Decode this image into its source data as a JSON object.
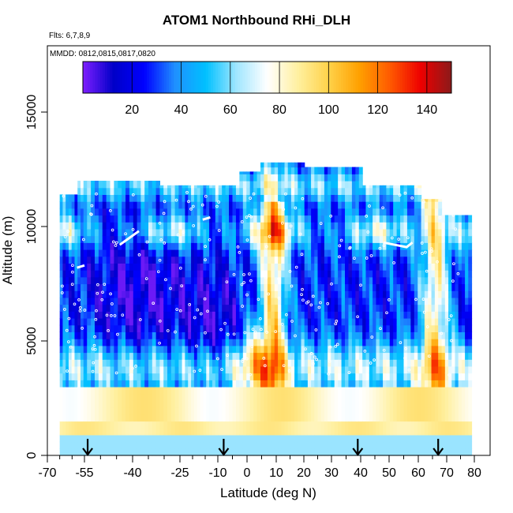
{
  "chart_data": {
    "type": "heatmap",
    "title": "ATOM1 Northbound RHi_DLH",
    "subtitle": "Flts: 6,7,8,9",
    "annotation": "MMDD: 0812,0815,0817,0820",
    "xlabel": "Latitude (deg N)",
    "ylabel": "Altitude (m)",
    "xlim": [
      -70,
      80
    ],
    "ylim": [
      0,
      17500
    ],
    "x_ticks": [
      -70,
      -55,
      -40,
      -25,
      -10,
      0,
      10,
      20,
      30,
      40,
      50,
      60,
      70,
      80
    ],
    "y_ticks": [
      0,
      5000,
      10000,
      15000
    ],
    "colorbar": {
      "range": [
        0,
        150
      ],
      "ticks": [
        20,
        40,
        60,
        80,
        100,
        120,
        140
      ],
      "colors": [
        "#7f1fff",
        "#0000c8",
        "#0000ff",
        "#1f90ff",
        "#00c0ff",
        "#a0e6ff",
        "#ffffff",
        "#fff0a0",
        "#ffd24a",
        "#ffa000",
        "#ff5a00",
        "#ee0000",
        "#8b1a1a"
      ]
    },
    "arrow_markers_latitude": [
      -54,
      -8,
      39,
      67
    ],
    "grid": false
  },
  "legend": {
    "placement": "top"
  }
}
